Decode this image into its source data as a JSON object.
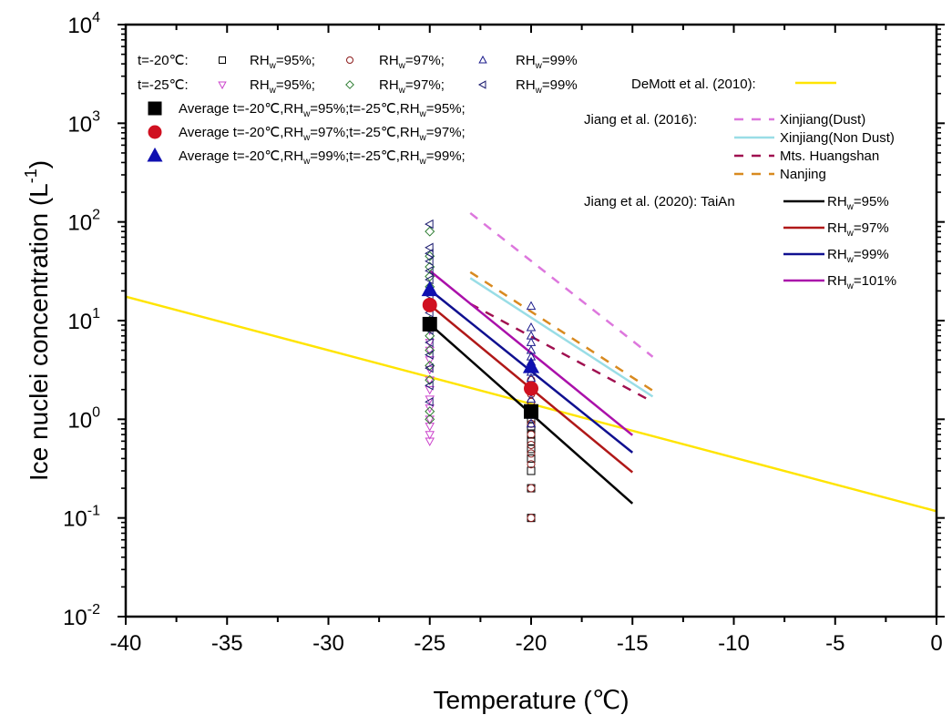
{
  "chart_data": {
    "type": "scatter",
    "title": "",
    "xlabel": "Temperature (℃)",
    "ylabel": "Ice nuclei concentration (L",
    "ylabel_sup": "-1",
    "ylabel_tail": ")",
    "xlim": [
      -40,
      0
    ],
    "ylim": [
      0.01,
      10000
    ],
    "yscale": "log",
    "grid": false,
    "x_ticks": [
      -40,
      -35,
      -30,
      -25,
      -20,
      -15,
      -10,
      -5,
      0
    ],
    "x_tick_labels": [
      "-40",
      "-35",
      "-30",
      "-25",
      "-20",
      "-15",
      "-10",
      "-5",
      "0"
    ],
    "y_ticks": [
      {
        "value": 10000,
        "base": "10",
        "exp": "4"
      },
      {
        "value": 1000,
        "base": "10",
        "exp": "3"
      },
      {
        "value": 100,
        "base": "10",
        "exp": "2"
      },
      {
        "value": 10,
        "base": "10",
        "exp": "1"
      },
      {
        "value": 1,
        "base": "10",
        "exp": "0"
      },
      {
        "value": 0.1,
        "base": "10",
        "exp": "-1"
      },
      {
        "value": 0.01,
        "base": "10",
        "exp": "-2"
      }
    ],
    "scatter_series": [
      {
        "name": "t=-20℃ RHw=95%",
        "marker": "square-open",
        "color": "#000000",
        "x": -20,
        "values": [
          1.0,
          0.85,
          0.7,
          0.6,
          0.5,
          0.4,
          0.3,
          0.2,
          0.1
        ]
      },
      {
        "name": "t=-20℃ RHw=97%",
        "marker": "circle-open",
        "color": "#8b1a1a",
        "x": -20,
        "values": [
          2.5,
          1.8,
          1.5,
          0.9,
          0.7,
          0.55,
          0.45,
          0.35,
          0.2,
          0.1
        ]
      },
      {
        "name": "t=-20℃ RHw=99%",
        "marker": "triangle-up-open",
        "color": "#1a1a8b",
        "x": -20,
        "values": [
          14,
          8.5,
          7,
          6,
          5,
          4.3,
          3.8,
          3,
          2.6,
          1.6,
          1.1,
          0.9
        ]
      },
      {
        "name": "t=-25℃ RHw=95%",
        "marker": "triangle-down-open",
        "color": "#cc44cc",
        "x": -25,
        "values": [
          8,
          6,
          5,
          4,
          3.2,
          2.5,
          2,
          1.6,
          1.3,
          1.0,
          0.85,
          0.7,
          0.6
        ]
      },
      {
        "name": "t=-25℃ RHw=97%",
        "marker": "diamond-open",
        "color": "#2e7d32",
        "x": -25,
        "values": [
          80,
          45,
          35,
          28,
          22,
          15,
          10,
          7,
          5,
          3.5,
          2.5,
          1.2,
          1.0
        ]
      },
      {
        "name": "t=-25℃ RHw=99%",
        "marker": "triangle-left-open",
        "color": "#1a1a6e",
        "x": -25,
        "values": [
          95,
          55,
          48,
          40,
          32,
          26,
          18,
          12,
          8,
          6,
          4.5,
          3.3,
          2.2,
          1.5
        ]
      }
    ],
    "averages": [
      {
        "name": "Average t=-20℃,RHw=95%;t=-25℃,RHw=95%;",
        "marker": "square",
        "color": "#000000",
        "x": [
          -25,
          -20
        ],
        "values": [
          9.2,
          1.2
        ]
      },
      {
        "name": "Average t=-20℃,RHw=97%;t=-25℃,RHw=97%;",
        "marker": "circle",
        "color": "#d01020",
        "x": [
          -25,
          -20
        ],
        "values": [
          14.4,
          2.05
        ]
      },
      {
        "name": "Average t=-20℃,RHw=99%;t=-25℃,RHw=99%;",
        "marker": "triangle-up",
        "color": "#1010b0",
        "x": [
          -25,
          -20
        ],
        "values": [
          20.5,
          3.4
        ]
      }
    ],
    "line_series": [
      {
        "name": "DeMott et al. (2010)",
        "color": "#ffe400",
        "dash": false,
        "x": [
          -40,
          0
        ],
        "values": [
          17.5,
          0.117
        ]
      },
      {
        "name": "Xinjiang(Dust)",
        "color": "#dd77dd",
        "dash": true,
        "x": [
          -23,
          -14
        ],
        "values": [
          123,
          4.3
        ]
      },
      {
        "name": "Xinjiang(Non Dust)",
        "color": "#99dde6",
        "dash": false,
        "x": [
          -23,
          -14
        ],
        "values": [
          27,
          1.7
        ]
      },
      {
        "name": "Mts. Huangshan",
        "color": "#a01050",
        "dash": true,
        "x": [
          -23,
          -14
        ],
        "values": [
          14.8,
          1.5
        ]
      },
      {
        "name": "Nanjing",
        "color": "#d88a20",
        "dash": true,
        "x": [
          -23,
          -14
        ],
        "values": [
          31,
          1.95
        ]
      },
      {
        "name": "TaiAn RHw=95%",
        "color": "#000000",
        "dash": false,
        "x": [
          -25,
          -15
        ],
        "values": [
          9.2,
          0.14
        ]
      },
      {
        "name": "TaiAn RHw=97%",
        "color": "#b01818",
        "dash": false,
        "x": [
          -25,
          -15
        ],
        "values": [
          14.4,
          0.29
        ]
      },
      {
        "name": "TaiAn RHw=99%",
        "color": "#101090",
        "dash": false,
        "x": [
          -25,
          -15
        ],
        "values": [
          20.5,
          0.46
        ]
      },
      {
        "name": "TaiAn RHw=101%",
        "color": "#aa10aa",
        "dash": false,
        "x": [
          -25,
          -15
        ],
        "values": [
          32,
          0.69
        ]
      }
    ],
    "legend": {
      "placement": "top",
      "row1_prefix": "t=-20℃:",
      "row2_prefix": "t=-25℃:",
      "rh_prefix": "RH",
      "rh_sub": "w",
      "row1_items": [
        "=95%;",
        "=97%;",
        "=99%"
      ],
      "row2_items": [
        "=95%;",
        "=97%;",
        "=99%"
      ],
      "avg_items": [
        {
          "a": "Average t=-20℃,RH",
          "b": "=95%;t=-25℃,RH",
          "c": "=95%;"
        },
        {
          "a": "Average t=-20℃,RH",
          "b": "=97%;t=-25℃,RH",
          "c": "=97%;"
        },
        {
          "a": "Average t=-20℃,RH",
          "b": "=99%;t=-25℃,RH",
          "c": "=99%;"
        }
      ],
      "demott_label": "DeMott et al. (2010):",
      "jiang2016_label": "Jiang et al. (2016):",
      "jiang2016_items": [
        "Xinjiang(Dust)",
        "Xinjiang(Non Dust)",
        "Mts. Huangshan",
        "Nanjing"
      ],
      "jiang2020_label": "Jiang et al. (2020): TaiAn",
      "jiang2020_items": [
        "=95%",
        "=97%",
        "=99%",
        "=101%"
      ]
    }
  }
}
